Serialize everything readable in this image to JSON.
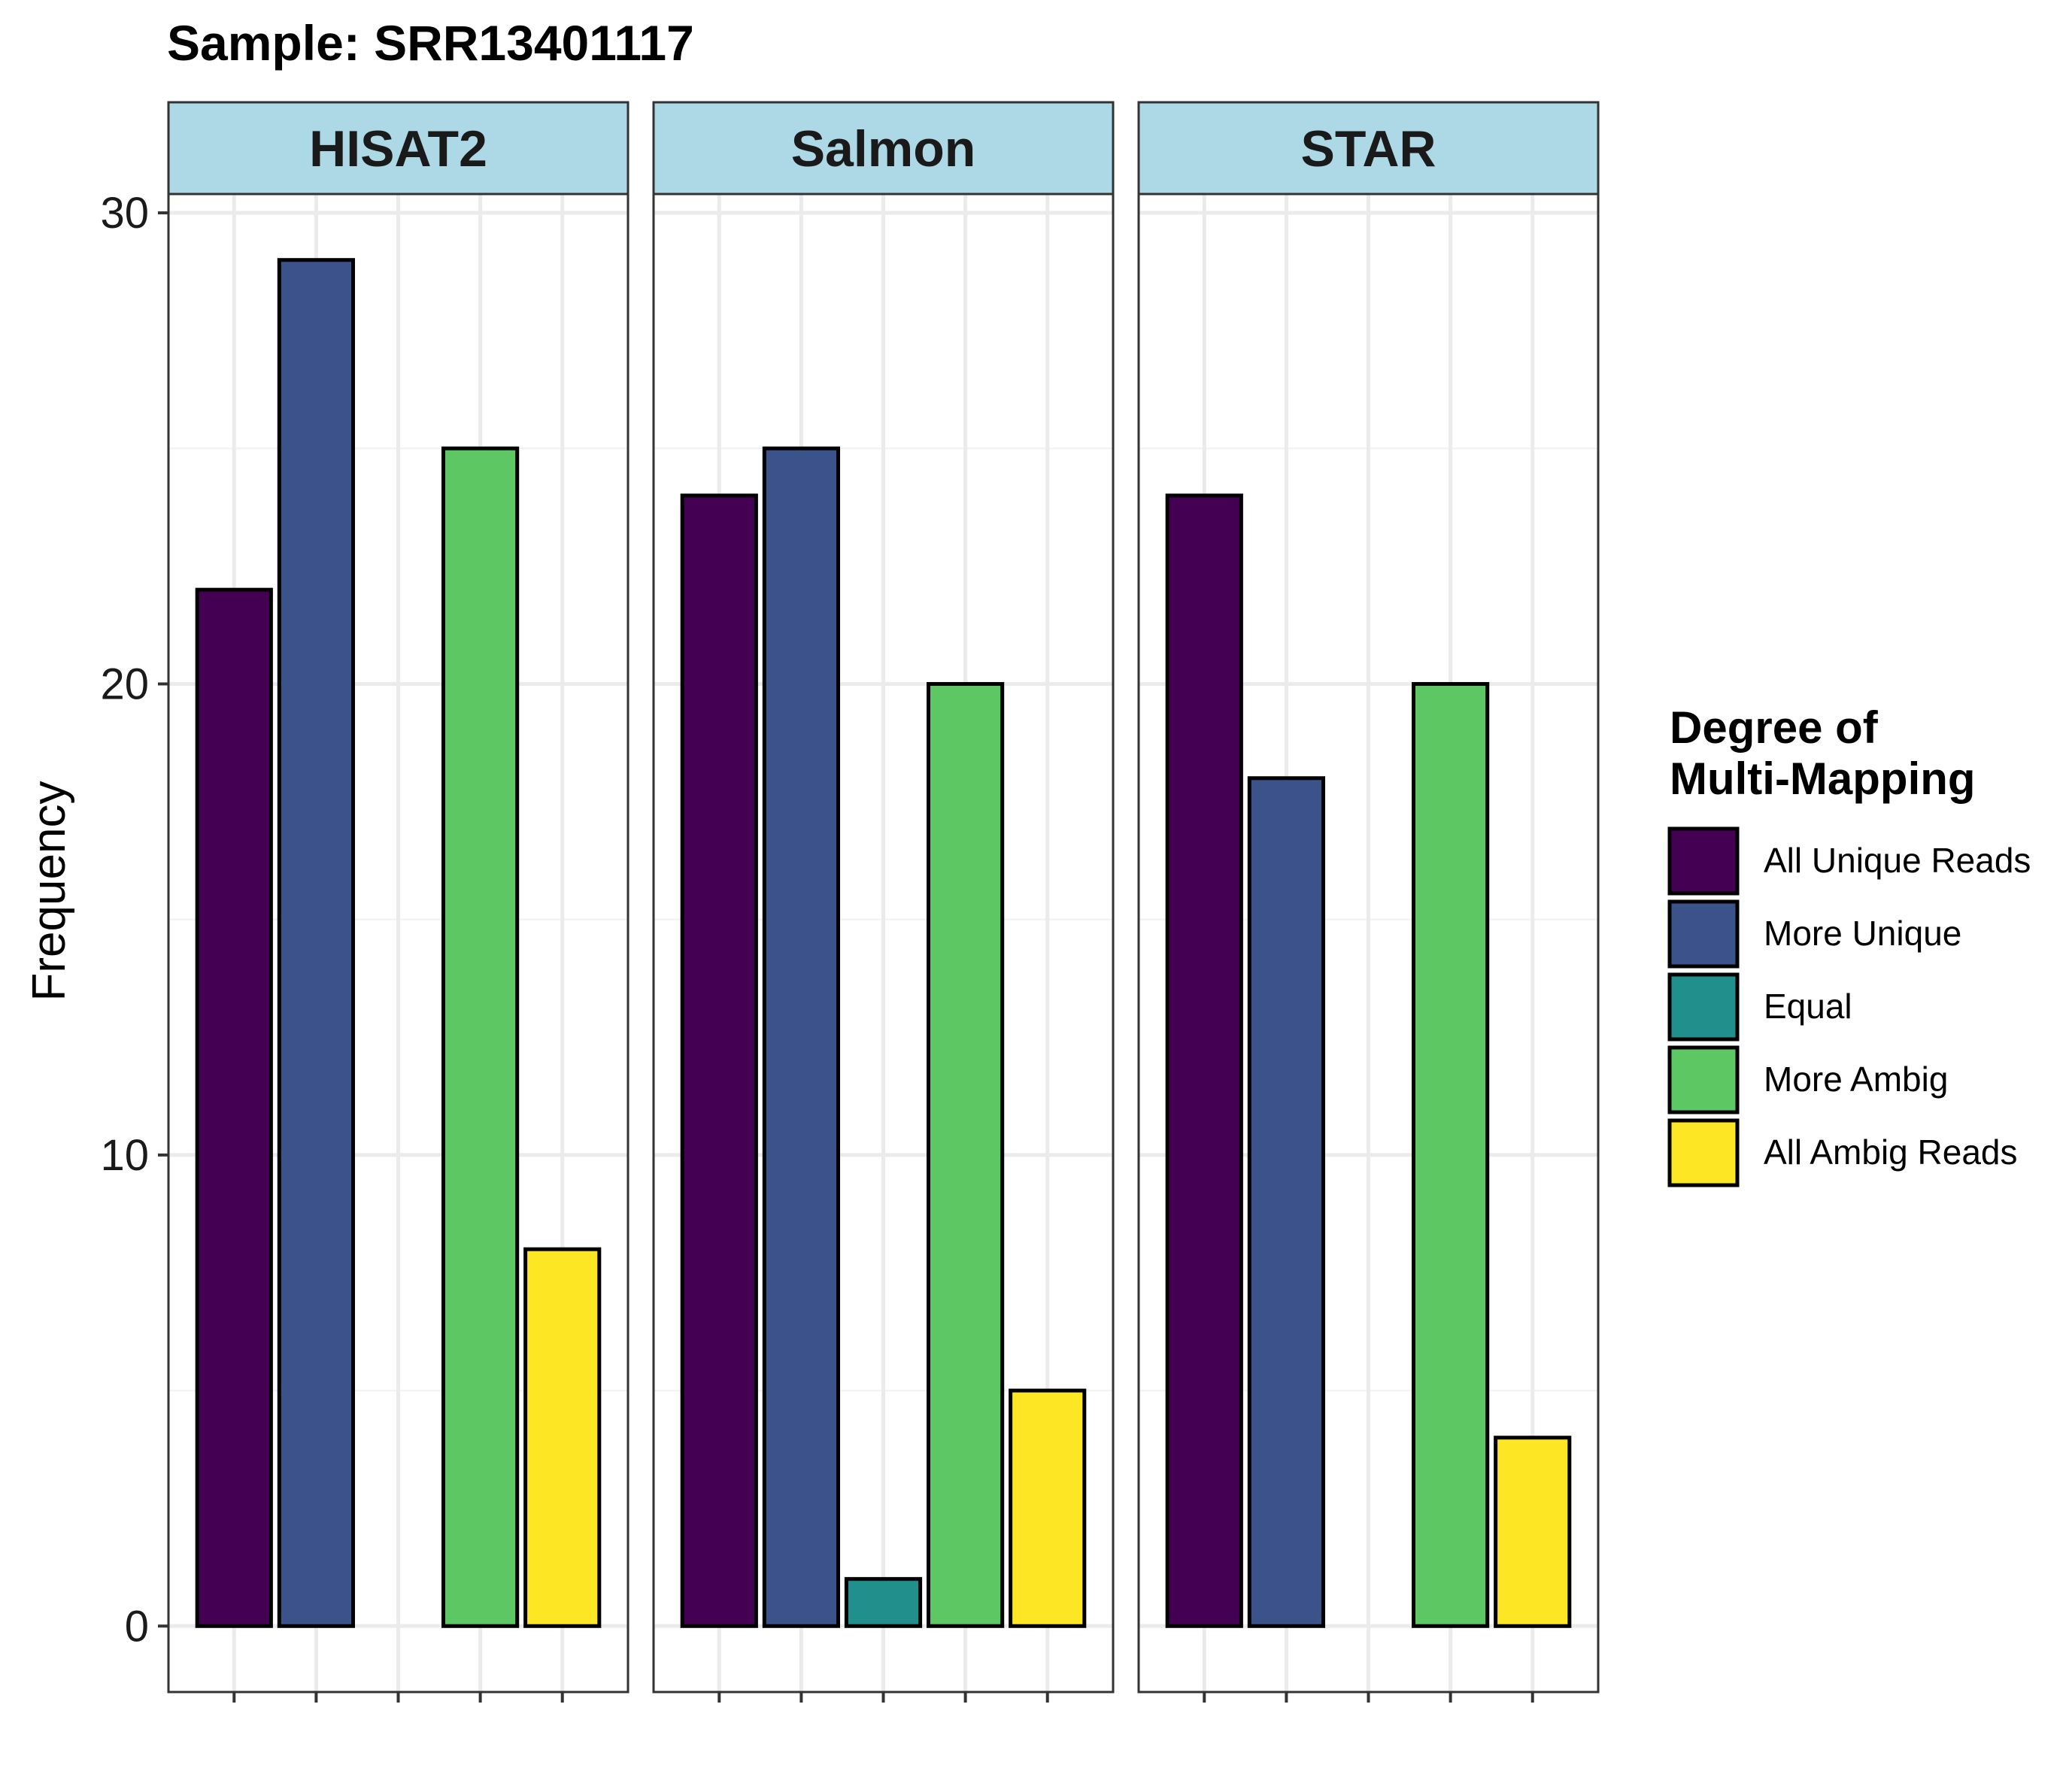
{
  "chart_data": {
    "type": "bar",
    "title": "Sample: SRR13401117",
    "xlabel": "",
    "ylabel": "Frequency",
    "ylim": [
      -1.4,
      30.4
    ],
    "yticks": [
      0,
      10,
      20,
      30
    ],
    "grid": true,
    "legend_position": "right",
    "legend_title": [
      "Degree of",
      "Multi-Mapping"
    ],
    "categories": [
      "All Unique Reads",
      "More Unique",
      "Equal",
      "More Ambig",
      "All Ambig Reads"
    ],
    "colors": {
      "All Unique Reads": "#440154",
      "More Unique": "#3B528B",
      "Equal": "#21908C",
      "More Ambig": "#5DC863",
      "All Ambig Reads": "#FDE725"
    },
    "strip_color": "#ADD8E6",
    "facets": [
      {
        "name": "HISAT2",
        "values": [
          22,
          29,
          0,
          25,
          8
        ]
      },
      {
        "name": "Salmon",
        "values": [
          24,
          25,
          1,
          20,
          5
        ]
      },
      {
        "name": "STAR",
        "values": [
          24,
          18,
          0,
          20,
          4
        ]
      }
    ]
  }
}
